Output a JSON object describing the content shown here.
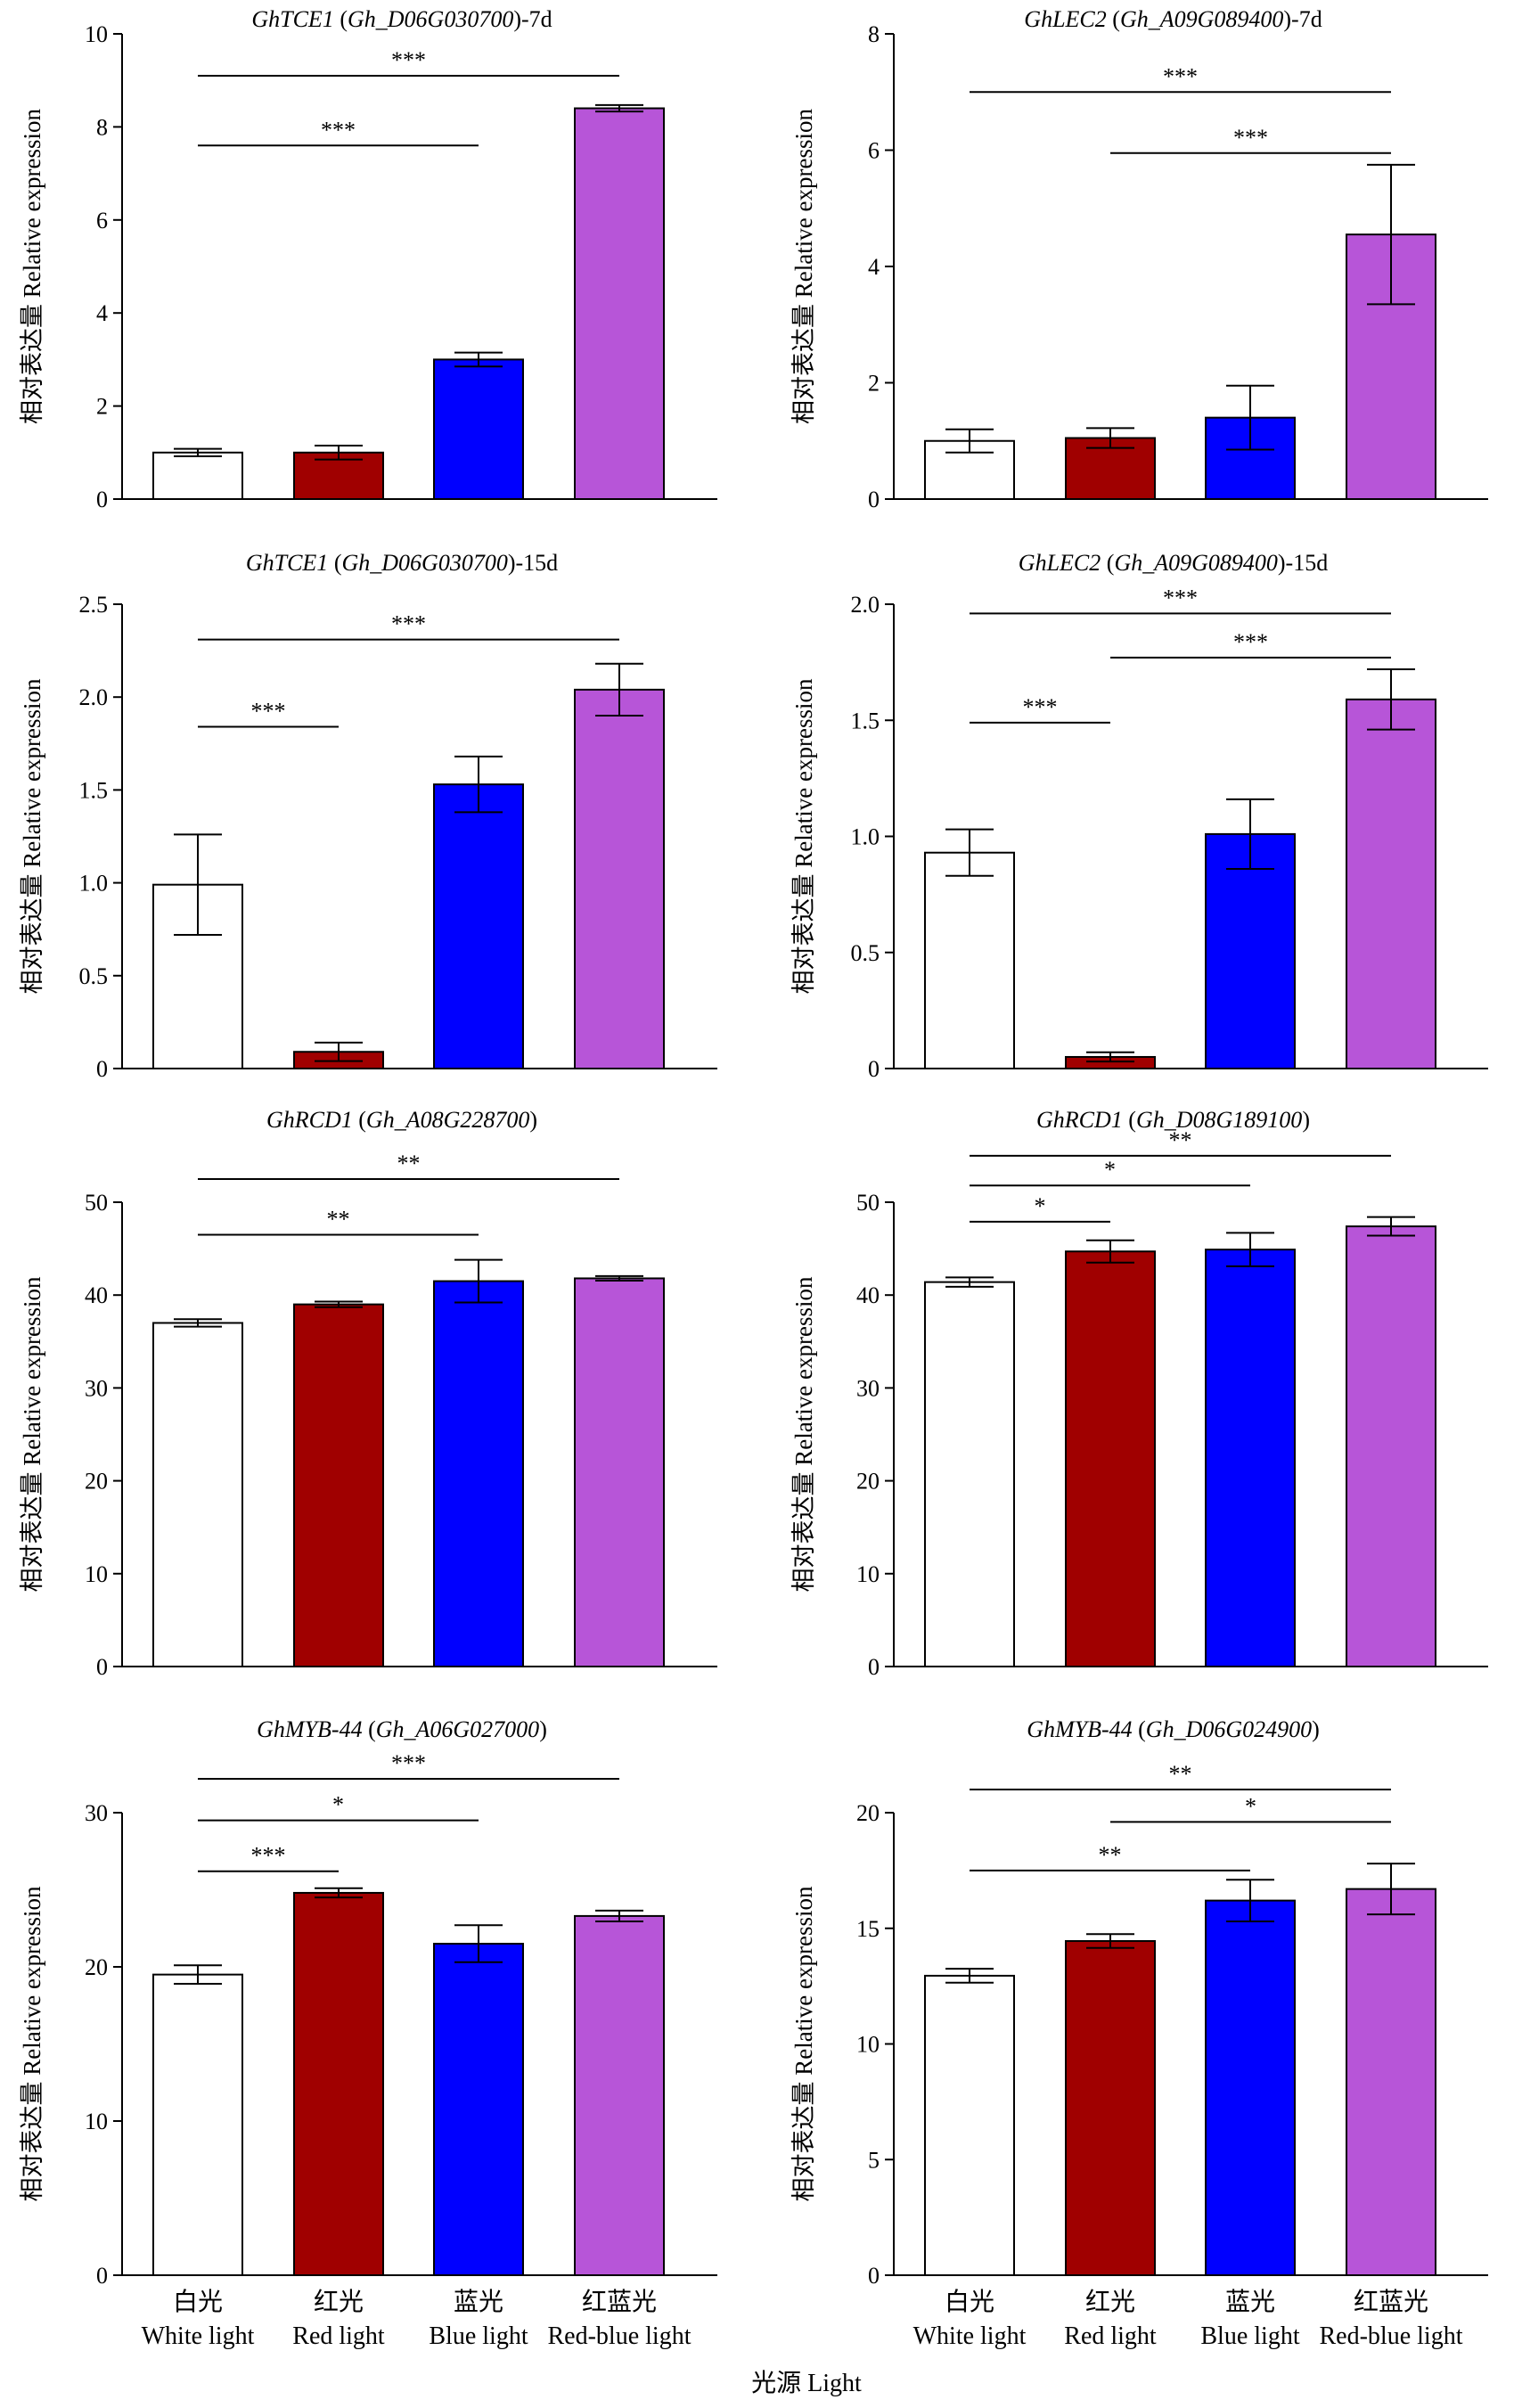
{
  "figure": {
    "x_axis_title": "光源 Light",
    "category_labels_cn": [
      "白光",
      "红光",
      "蓝光",
      "红蓝光"
    ],
    "category_labels_en": [
      "White light",
      "Red light",
      "Blue light",
      "Red-blue light"
    ],
    "ylabel": "相对表达量 Relative expression",
    "colors": [
      "#ffffff",
      "#a00000",
      "#0000ff",
      "#b755d8"
    ]
  },
  "chart_data": [
    {
      "type": "bar",
      "title_gene": "GhTCE1",
      "title_id": "Gh_D06G030700",
      "title_suffix": "-7d",
      "categories": [
        "White light",
        "Red light",
        "Blue light",
        "Red-blue light"
      ],
      "values": [
        1.0,
        1.0,
        3.0,
        8.4
      ],
      "errors": [
        0.08,
        0.15,
        0.15,
        0.07
      ],
      "ylim": [
        0,
        10
      ],
      "yticks": [
        0,
        2,
        4,
        6,
        8,
        10
      ],
      "ytick_labels": [
        "0",
        "2",
        "4",
        "6",
        "8",
        "10"
      ],
      "significance": [
        {
          "from": 0,
          "to": 3,
          "y": 9.1,
          "label": "***"
        },
        {
          "from": 0,
          "to": 2,
          "y": 7.6,
          "label": "***"
        }
      ],
      "ylabel": "相对表达量 Relative expression"
    },
    {
      "type": "bar",
      "title_gene": "GhLEC2",
      "title_id": "Gh_A09G089400",
      "title_suffix": "-7d",
      "categories": [
        "White light",
        "Red light",
        "Blue light",
        "Red-blue light"
      ],
      "values": [
        1.0,
        1.05,
        1.4,
        4.55
      ],
      "errors": [
        0.2,
        0.17,
        0.55,
        1.2
      ],
      "ylim": [
        0,
        8
      ],
      "yticks": [
        0,
        2,
        4,
        6,
        8
      ],
      "ytick_labels": [
        "0",
        "2",
        "4",
        "6",
        "8"
      ],
      "significance": [
        {
          "from": 0,
          "to": 3,
          "y": 7.0,
          "label": "***"
        },
        {
          "from": 1,
          "to": 3,
          "y": 5.95,
          "label": "***"
        }
      ],
      "ylabel": "相对表达量 Relative expression"
    },
    {
      "type": "bar",
      "title_gene": "GhTCE1",
      "title_id": "Gh_D06G030700",
      "title_suffix": "-15d",
      "categories": [
        "White light",
        "Red light",
        "Blue light",
        "Red-blue light"
      ],
      "values": [
        0.99,
        0.09,
        1.53,
        2.04
      ],
      "errors": [
        0.27,
        0.05,
        0.15,
        0.14
      ],
      "ylim": [
        0,
        2.5
      ],
      "yticks": [
        0,
        0.5,
        1.0,
        1.5,
        2.0,
        2.5
      ],
      "ytick_labels": [
        "0",
        "0.5",
        "1.0",
        "1.5",
        "2.0",
        "2.5"
      ],
      "significance": [
        {
          "from": 0,
          "to": 3,
          "y": 2.31,
          "label": "***"
        },
        {
          "from": 0,
          "to": 1,
          "y": 1.84,
          "label": "***"
        }
      ],
      "ylabel": "相对表达量 Relative expression"
    },
    {
      "type": "bar",
      "title_gene": "GhLEC2",
      "title_id": "Gh_A09G089400",
      "title_suffix": "-15d",
      "categories": [
        "White light",
        "Red light",
        "Blue light",
        "Red-blue light"
      ],
      "values": [
        0.93,
        0.05,
        1.01,
        1.59
      ],
      "errors": [
        0.1,
        0.02,
        0.15,
        0.13
      ],
      "ylim": [
        0,
        2.0
      ],
      "yticks": [
        0,
        0.5,
        1.0,
        1.5,
        2.0
      ],
      "ytick_labels": [
        "0",
        "0.5",
        "1.0",
        "1.5",
        "2.0"
      ],
      "significance": [
        {
          "from": 0,
          "to": 3,
          "y": 1.96,
          "label": "***"
        },
        {
          "from": 1,
          "to": 3,
          "y": 1.77,
          "label": "***"
        },
        {
          "from": 0,
          "to": 1,
          "y": 1.49,
          "label": "***"
        }
      ],
      "ylabel": "相对表达量 Relative expression"
    },
    {
      "type": "bar",
      "title_gene": "GhRCD1",
      "title_id": "Gh_A08G228700",
      "title_suffix": "",
      "categories": [
        "White light",
        "Red light",
        "Blue light",
        "Red-blue light"
      ],
      "values": [
        37.0,
        39.0,
        41.5,
        41.8
      ],
      "errors": [
        0.4,
        0.3,
        2.3,
        0.25
      ],
      "ylim": [
        0,
        50
      ],
      "yticks": [
        0,
        10,
        20,
        30,
        40,
        50
      ],
      "ytick_labels": [
        "0",
        "10",
        "20",
        "30",
        "40",
        "50"
      ],
      "significance": [
        {
          "from": 0,
          "to": 3,
          "y": 52.5,
          "label": "**"
        },
        {
          "from": 0,
          "to": 2,
          "y": 46.5,
          "label": "**"
        }
      ],
      "ylabel": "相对表达量 Relative expression"
    },
    {
      "type": "bar",
      "title_gene": "GhRCD1",
      "title_id": "Gh_D08G189100",
      "title_suffix": "",
      "categories": [
        "White light",
        "Red light",
        "Blue light",
        "Red-blue light"
      ],
      "values": [
        41.4,
        44.7,
        44.9,
        47.4
      ],
      "errors": [
        0.5,
        1.2,
        1.8,
        1.0
      ],
      "ylim": [
        0,
        50
      ],
      "yticks": [
        0,
        10,
        20,
        30,
        40,
        50
      ],
      "ytick_labels": [
        "0",
        "10",
        "20",
        "30",
        "40",
        "50"
      ],
      "significance": [
        {
          "from": 0,
          "to": 3,
          "y": 55.0,
          "label": "**"
        },
        {
          "from": 0,
          "to": 2,
          "y": 51.8,
          "label": "*"
        },
        {
          "from": 0,
          "to": 1,
          "y": 47.9,
          "label": "*"
        }
      ],
      "ylabel": "相对表达量 Relative expression"
    },
    {
      "type": "bar",
      "title_gene": "GhMYB-44",
      "title_id": "Gh_A06G027000",
      "title_suffix": "",
      "categories": [
        "White light",
        "Red light",
        "Blue light",
        "Red-blue light"
      ],
      "values": [
        19.5,
        24.8,
        21.5,
        23.3
      ],
      "errors": [
        0.6,
        0.3,
        1.2,
        0.35
      ],
      "ylim": [
        0,
        30
      ],
      "yticks": [
        0,
        10,
        20,
        30
      ],
      "ytick_labels": [
        "0",
        "10",
        "20",
        "30"
      ],
      "significance": [
        {
          "from": 0,
          "to": 3,
          "y": 32.2,
          "label": "***"
        },
        {
          "from": 0,
          "to": 2,
          "y": 29.5,
          "label": "*"
        },
        {
          "from": 0,
          "to": 1,
          "y": 26.2,
          "label": "***"
        }
      ],
      "ylabel": "相对表达量 Relative expression"
    },
    {
      "type": "bar",
      "title_gene": "GhMYB-44",
      "title_id": "Gh_D06G024900",
      "title_suffix": "",
      "categories": [
        "White light",
        "Red light",
        "Blue light",
        "Red-blue light"
      ],
      "values": [
        12.95,
        14.45,
        16.2,
        16.7
      ],
      "errors": [
        0.3,
        0.3,
        0.9,
        1.1
      ],
      "ylim": [
        0,
        20
      ],
      "yticks": [
        0,
        5,
        10,
        15,
        20
      ],
      "ytick_labels": [
        "0",
        "5",
        "10",
        "15",
        "20"
      ],
      "significance": [
        {
          "from": 0,
          "to": 3,
          "y": 21.0,
          "label": "**"
        },
        {
          "from": 1,
          "to": 3,
          "y": 19.6,
          "label": "*"
        },
        {
          "from": 0,
          "to": 2,
          "y": 17.5,
          "label": "**"
        }
      ],
      "ylabel": "相对表达量 Relative expression"
    }
  ]
}
